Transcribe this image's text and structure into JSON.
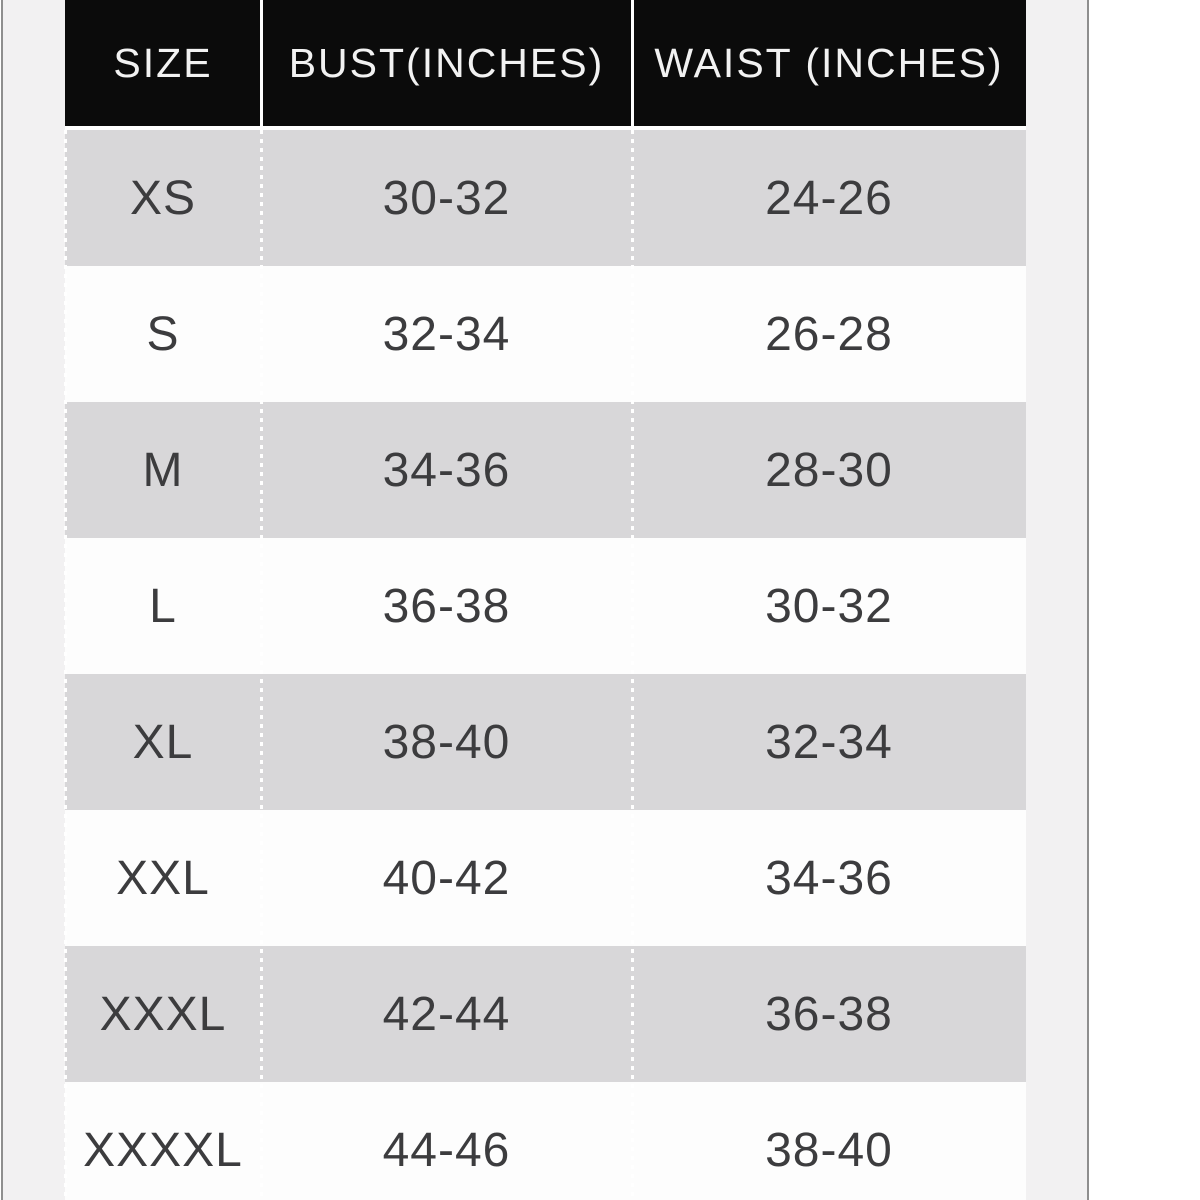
{
  "colors": {
    "header_bg": "#0b0b0b",
    "header_text": "#f2f2f2",
    "row_gray_bg": "#d8d7d9",
    "row_white_bg": "#fdfdfd",
    "cell_text": "#3c3c3e",
    "gutter_bg": "#f2f1f2",
    "frame_line": "#8f8f8f",
    "divider": "#ffffff"
  },
  "table": {
    "columns": [
      "SIZE",
      "BUST(INCHES)",
      "WAIST (INCHES)"
    ],
    "rows": [
      {
        "size": "XS",
        "bust": "30-32",
        "waist": "24-26"
      },
      {
        "size": "S",
        "bust": "32-34",
        "waist": "26-28"
      },
      {
        "size": "M",
        "bust": "34-36",
        "waist": "28-30"
      },
      {
        "size": "L",
        "bust": "36-38",
        "waist": "30-32"
      },
      {
        "size": "XL",
        "bust": "38-40",
        "waist": "32-34"
      },
      {
        "size": "XXL",
        "bust": "40-42",
        "waist": "34-36"
      },
      {
        "size": "XXXL",
        "bust": "42-44",
        "waist": "36-38"
      },
      {
        "size": "XXXXL",
        "bust": "44-46",
        "waist": "38-40"
      }
    ]
  },
  "chart_data": {
    "type": "table",
    "columns": [
      "SIZE",
      "BUST(INCHES)",
      "WAIST (INCHES)"
    ],
    "rows": [
      [
        "XS",
        "30-32",
        "24-26"
      ],
      [
        "S",
        "32-34",
        "26-28"
      ],
      [
        "M",
        "34-36",
        "28-30"
      ],
      [
        "L",
        "36-38",
        "30-32"
      ],
      [
        "XL",
        "38-40",
        "32-34"
      ],
      [
        "XXL",
        "40-42",
        "34-36"
      ],
      [
        "XXXL",
        "42-44",
        "36-38"
      ],
      [
        "XXXXL",
        "44-46",
        "38-40"
      ]
    ]
  }
}
